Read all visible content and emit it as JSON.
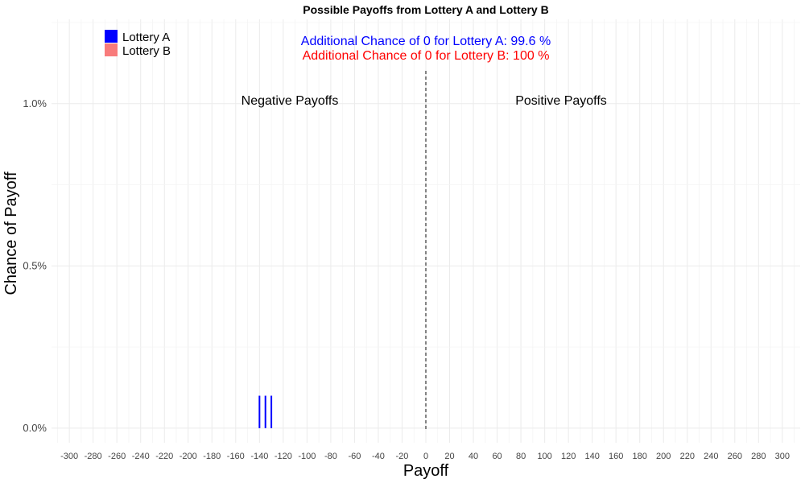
{
  "chart_data": {
    "type": "bar",
    "title": "Possible Payoffs from Lottery A and Lottery B",
    "xlabel": "Payoff",
    "ylabel": "Chance of Payoff",
    "xlim": [
      -315,
      315
    ],
    "ylim": [
      -0.00045,
      0.0126
    ],
    "xticks": [
      -300,
      -280,
      -260,
      -240,
      -220,
      -200,
      -180,
      -160,
      -140,
      -120,
      -100,
      -80,
      -60,
      -40,
      -20,
      0,
      20,
      40,
      60,
      80,
      100,
      120,
      140,
      160,
      180,
      200,
      220,
      240,
      260,
      280,
      300
    ],
    "yticks": [
      0,
      0.005,
      0.01
    ],
    "ytick_labels": [
      "0.0%",
      "0.5%",
      "1.0%"
    ],
    "grid": true,
    "legend_position": "top-left",
    "reference_line_x": 0,
    "series": [
      {
        "name": "Lottery A",
        "color": "#0000ff",
        "x": [
          -140,
          -135,
          -130
        ],
        "values": [
          0.001,
          0.001,
          0.001
        ]
      },
      {
        "name": "Lottery B",
        "color": "#f87b7b",
        "x": [],
        "values": []
      }
    ],
    "region_labels": {
      "negative": "Negative Payoffs",
      "positive": "Positive Payoffs"
    },
    "annotations": [
      {
        "text": "Additional Chance of 0 for Lottery A:  99.6 %",
        "color": "#0000ff"
      },
      {
        "text": "Additional Chance of 0 for Lottery B:  100 %",
        "color": "#ff0000"
      }
    ]
  }
}
